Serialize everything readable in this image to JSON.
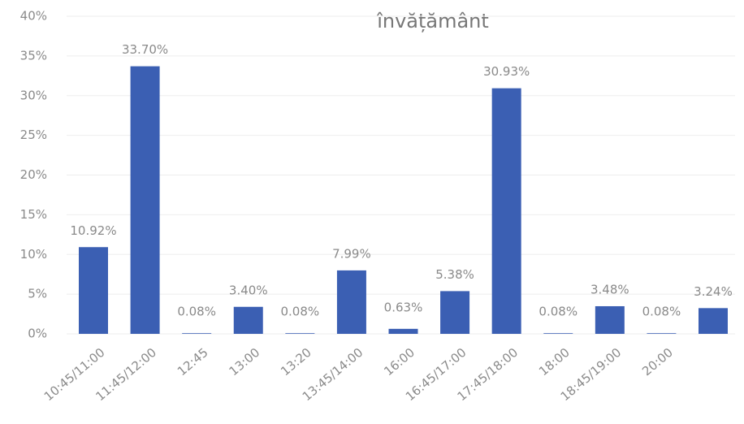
{
  "chart_data": {
    "type": "bar",
    "title": "învățământ",
    "categories": [
      "10:45/11:00",
      "11:45/12:00",
      "12:45",
      "13:00",
      "13:20",
      "13:45/14:00",
      "16:00",
      "16:45/17:00",
      "17:45/18:00",
      "18:00",
      "18:45/19:00",
      "20:00",
      null
    ],
    "values": [
      10.92,
      33.7,
      0.08,
      3.4,
      0.08,
      7.99,
      0.63,
      5.38,
      30.93,
      0.08,
      3.48,
      0.08,
      3.24
    ],
    "value_labels": [
      "10.92%",
      "33.70%",
      "0.08%",
      "3.40%",
      "0.08%",
      "7.99%",
      "0.63%",
      "5.38%",
      "30.93%",
      "0.08%",
      "3.48%",
      "0.08%",
      "3.24%"
    ],
    "color": "#3b5fb3",
    "ylim": [
      0,
      40
    ],
    "yticks": [
      {
        "value": 0,
        "label": "0%"
      },
      {
        "value": 5,
        "label": "5%"
      },
      {
        "value": 10,
        "label": "10%"
      },
      {
        "value": 15,
        "label": "15%"
      },
      {
        "value": 20,
        "label": "20%"
      },
      {
        "value": 25,
        "label": "25%"
      },
      {
        "value": 30,
        "label": "30%"
      },
      {
        "value": 35,
        "label": "35%"
      },
      {
        "value": 40,
        "label": "40%"
      }
    ],
    "grid": true
  }
}
